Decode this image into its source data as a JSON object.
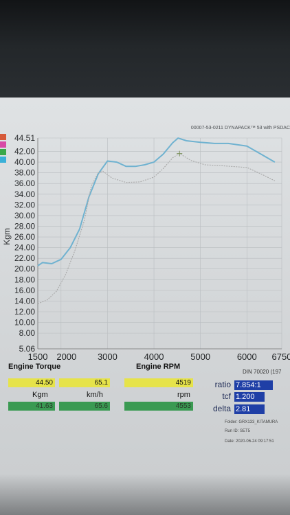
{
  "header": {
    "title": "00007-53-0211 DYNAPACK™ 53 with PSDAC"
  },
  "legend_colors": [
    "#d65a3a",
    "#d84aa6",
    "#3aa84a",
    "#3ab0d8"
  ],
  "chart_data": {
    "type": "line",
    "xlabel": "",
    "ylabel": "Kgm",
    "xlim": [
      1500,
      6750
    ],
    "ylim": [
      5.06,
      44.51
    ],
    "x_ticks": [
      "1500",
      "2000",
      "3000",
      "4000",
      "5000",
      "6000",
      "6750"
    ],
    "x_tick_values": [
      1500,
      2000,
      3000,
      4000,
      5000,
      6000,
      6750
    ],
    "y_ticks": [
      "44.51",
      "42.00",
      "40.00",
      "38.00",
      "36.00",
      "34.00",
      "32.00",
      "30.00",
      "28.00",
      "26.00",
      "24.00",
      "22.00",
      "20.00",
      "18.00",
      "16.00",
      "14.00",
      "12.00",
      "10.00",
      "8.00",
      "5.06"
    ],
    "y_tick_values": [
      44.51,
      42,
      40,
      38,
      36,
      34,
      32,
      30,
      28,
      26,
      24,
      22,
      20,
      18,
      16,
      14,
      12,
      10,
      8,
      5.06
    ],
    "grid": true,
    "series": [
      {
        "color": "#6fb2d0",
        "x": [
          1500,
          1600,
          1800,
          2000,
          2200,
          2400,
          2600,
          2800,
          3000,
          3200,
          3400,
          3600,
          3800,
          4000,
          4200,
          4400,
          4519,
          4700,
          5000,
          5300,
          5600,
          6000,
          6300,
          6600
        ],
        "y": [
          20.6,
          21.2,
          21.0,
          21.8,
          24.0,
          27.5,
          33.5,
          37.8,
          40.2,
          40.0,
          39.2,
          39.2,
          39.5,
          40.0,
          41.5,
          43.6,
          44.5,
          44.0,
          43.7,
          43.5,
          43.5,
          43.0,
          41.5,
          40.0
        ]
      },
      {
        "color": "#a8a8a8",
        "x": [
          1500,
          1700,
          1900,
          2100,
          2300,
          2500,
          2650,
          2800,
          2900,
          3100,
          3400,
          3700,
          4000,
          4200,
          4400,
          4550,
          4800,
          5100,
          5500,
          6000,
          6300,
          6600
        ],
        "y": [
          13.5,
          14.2,
          15.8,
          19.0,
          23.5,
          29.0,
          35.5,
          38.0,
          38.3,
          37.0,
          36.2,
          36.3,
          37.2,
          38.8,
          40.8,
          41.6,
          40.3,
          39.5,
          39.3,
          39.0,
          37.8,
          36.5
        ]
      }
    ],
    "marker": {
      "x": 4550,
      "y": 41.6
    }
  },
  "readouts": [
    {
      "title": "Engine Torque",
      "value": "44.50",
      "unit": "Kgm",
      "lower": "41.63"
    },
    {
      "title": "",
      "value": "65.1",
      "unit": "km/h",
      "lower": "65.6"
    },
    {
      "title": "Engine RPM",
      "value": "4519",
      "unit": "rpm",
      "lower": "4553"
    }
  ],
  "params": [
    {
      "name": "ratio",
      "value": "7.854:1"
    },
    {
      "name": "tcf",
      "value": "1.200"
    },
    {
      "name": "delta",
      "value": "2.81"
    }
  ],
  "din": "DIN 70020 (197",
  "meta": {
    "folder": "Folder: GRX133_KITAMURA",
    "run_id": "Run ID: SET5",
    "date": "Date: 2020-06-24 09:17:51"
  }
}
